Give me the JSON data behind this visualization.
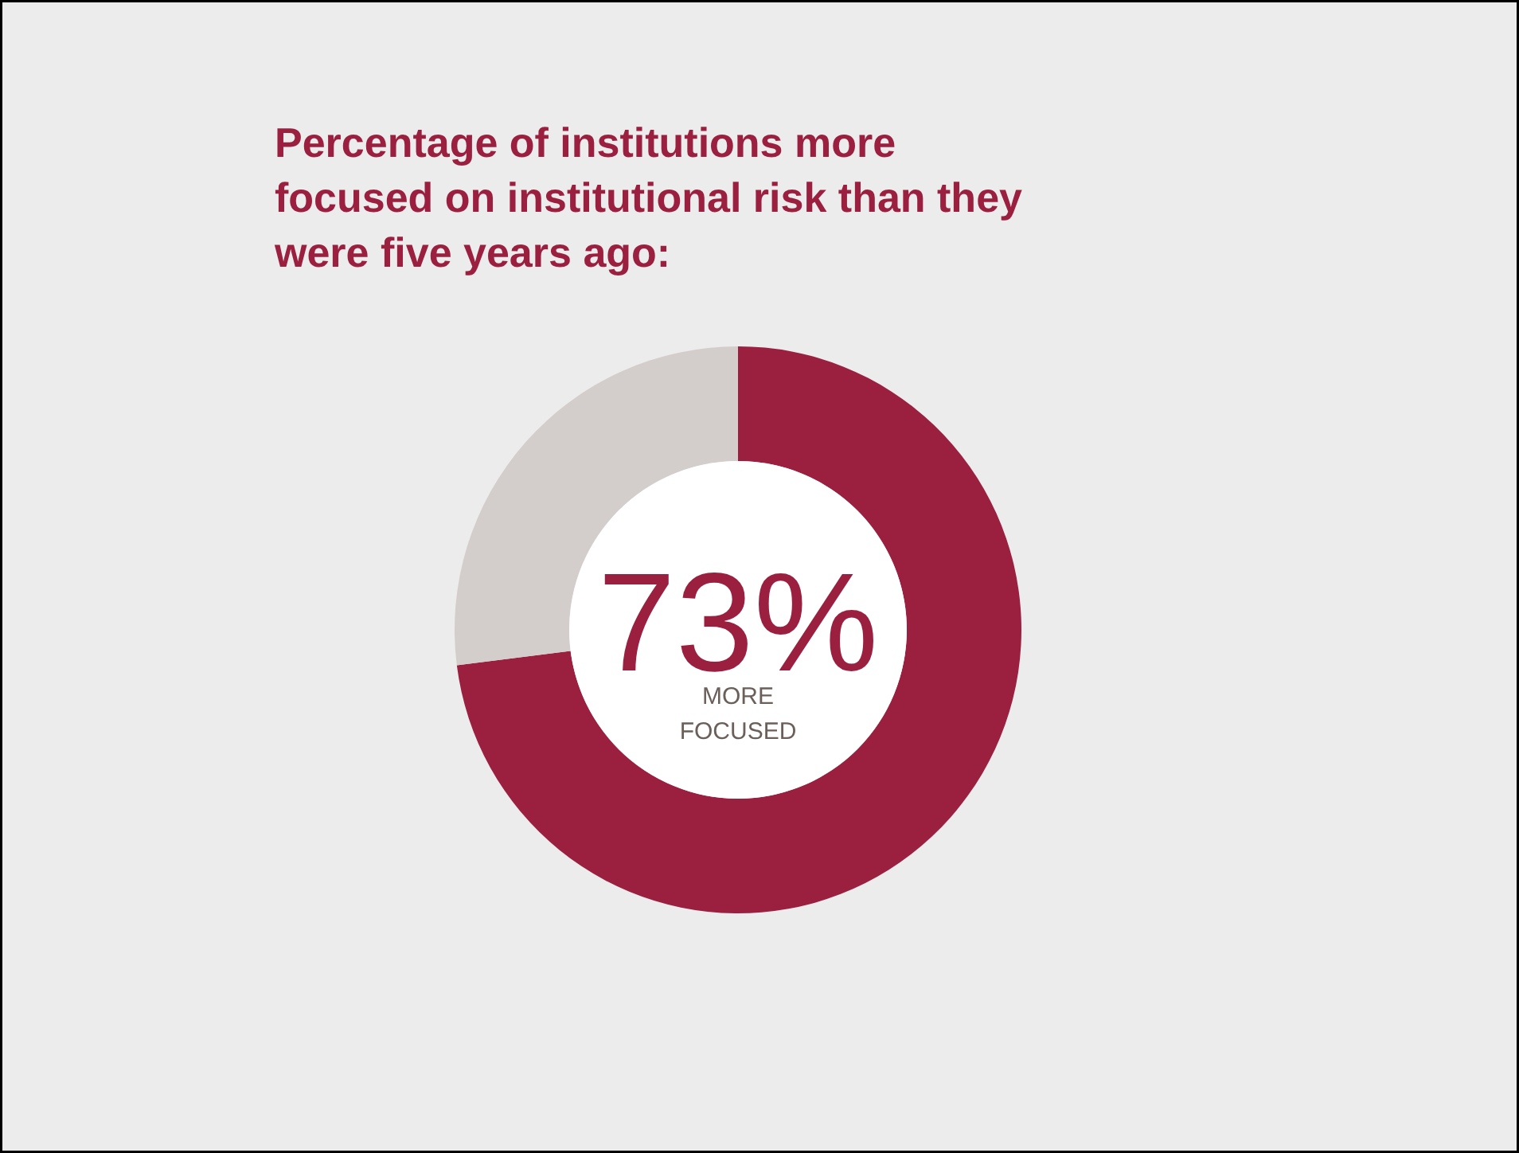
{
  "chart_data": {
    "type": "donut",
    "title": "Percentage of institutions more\nfocused on institutional risk than they\nwere five years ago:",
    "categories": [
      "MORE FOCUSED",
      null
    ],
    "values": [
      73,
      27
    ],
    "colors": [
      "#9b2040",
      "#d3cecb"
    ],
    "value_labels": [
      "73%",
      null
    ],
    "legend": false
  }
}
